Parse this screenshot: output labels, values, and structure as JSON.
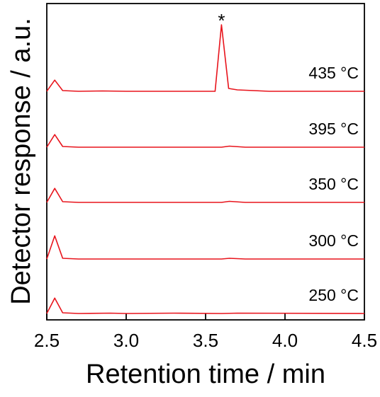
{
  "chart_data": {
    "type": "line",
    "xlabel": "Retention time / min",
    "ylabel": "Detector response / a.u.",
    "xlim": [
      2.5,
      4.5
    ],
    "xticks": [
      "2.5",
      "3.0",
      "3.5",
      "4.0",
      "4.5"
    ],
    "grid": false,
    "line_color": "#e8141c",
    "peak_marker": "*",
    "series": [
      {
        "name": "435 °C",
        "points": [
          [
            2.5,
            0
          ],
          [
            2.55,
            1.6
          ],
          [
            2.6,
            0.1
          ],
          [
            2.7,
            0
          ],
          [
            2.85,
            0.05
          ],
          [
            3.0,
            0
          ],
          [
            3.3,
            0
          ],
          [
            3.56,
            0
          ],
          [
            3.6,
            9.5
          ],
          [
            3.645,
            0.4
          ],
          [
            3.7,
            0.2
          ],
          [
            3.9,
            0
          ],
          [
            4.2,
            0
          ],
          [
            4.5,
            0
          ]
        ]
      },
      {
        "name": "395 °C",
        "points": [
          [
            2.5,
            0
          ],
          [
            2.55,
            1.8
          ],
          [
            2.6,
            0.1
          ],
          [
            2.7,
            0
          ],
          [
            3.0,
            0
          ],
          [
            3.6,
            0
          ],
          [
            3.65,
            0.15
          ],
          [
            3.75,
            0
          ],
          [
            4.5,
            0
          ]
        ]
      },
      {
        "name": "350 °C",
        "points": [
          [
            2.5,
            0
          ],
          [
            2.55,
            2.0
          ],
          [
            2.6,
            0.1
          ],
          [
            2.7,
            0
          ],
          [
            3.0,
            0
          ],
          [
            3.6,
            0
          ],
          [
            3.65,
            0.15
          ],
          [
            3.75,
            0
          ],
          [
            4.5,
            0
          ]
        ]
      },
      {
        "name": "300 °C",
        "points": [
          [
            2.5,
            0
          ],
          [
            2.55,
            3.3
          ],
          [
            2.6,
            0.1
          ],
          [
            2.7,
            0
          ],
          [
            3.0,
            0
          ],
          [
            3.6,
            0
          ],
          [
            3.65,
            0.1
          ],
          [
            3.75,
            0
          ],
          [
            4.5,
            0
          ]
        ]
      },
      {
        "name": "250 °C",
        "points": [
          [
            2.5,
            0
          ],
          [
            2.55,
            2.2
          ],
          [
            2.6,
            0.1
          ],
          [
            2.7,
            0
          ],
          [
            2.9,
            0.05
          ],
          [
            3.0,
            0
          ],
          [
            3.3,
            0.05
          ],
          [
            3.6,
            0
          ],
          [
            3.7,
            0.05
          ],
          [
            4.5,
            0
          ]
        ]
      }
    ]
  }
}
